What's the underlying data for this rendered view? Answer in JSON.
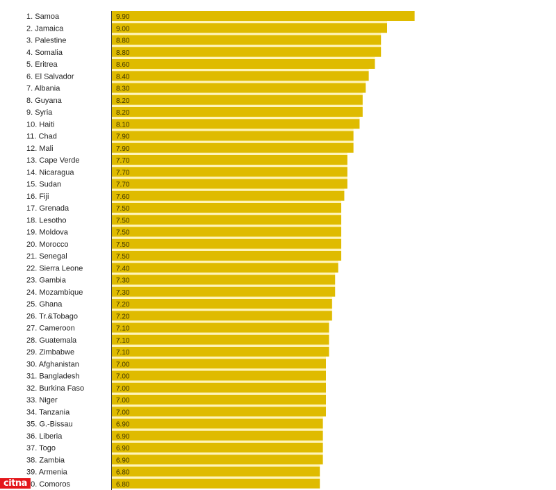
{
  "watermark": {
    "text": "citna",
    "color": "#e4161b"
  },
  "chart_data": {
    "type": "bar",
    "orientation": "horizontal",
    "title": "",
    "xlabel": "",
    "ylabel": "",
    "xlim": [
      0,
      9.9
    ],
    "grid": false,
    "legend": "none",
    "colors": {
      "bar": "#dfbb00",
      "gap": "#fff4b8",
      "axis": "#333333"
    },
    "categories": [
      "1. Samoa",
      "2. Jamaica",
      "3. Palestine",
      "4. Somalia",
      "5. Eritrea",
      "6. El Salvador",
      "7. Albania",
      "8. Guyana",
      "9. Syria",
      "10. Haiti",
      "11. Chad",
      "12. Mali",
      "13. Cape Verde",
      "14. Nicaragua",
      "15. Sudan",
      "16. Fiji",
      "17. Grenada",
      "18. Lesotho",
      "19. Moldova",
      "20. Morocco",
      "21. Senegal",
      "22. Sierra Leone",
      "23. Gambia",
      "24. Mozambique",
      "25. Ghana",
      "26. Tr.&Tobago",
      "27. Cameroon",
      "28. Guatemala",
      "29. Zimbabwe",
      "30. Afghanistan",
      "31. Bangladesh",
      "32. Burkina Faso",
      "33. Niger",
      "34. Tanzania",
      "35. G.-Bissau",
      "36. Liberia",
      "37. Togo",
      "38. Zambia",
      "39. Armenia",
      "40. Comoros"
    ],
    "values": [
      9.9,
      9.0,
      8.8,
      8.8,
      8.6,
      8.4,
      8.3,
      8.2,
      8.2,
      8.1,
      7.9,
      7.9,
      7.7,
      7.7,
      7.7,
      7.6,
      7.5,
      7.5,
      7.5,
      7.5,
      7.5,
      7.4,
      7.3,
      7.3,
      7.2,
      7.2,
      7.1,
      7.1,
      7.1,
      7.0,
      7.0,
      7.0,
      7.0,
      7.0,
      6.9,
      6.9,
      6.9,
      6.9,
      6.8,
      6.8
    ],
    "value_labels": [
      "9.90",
      "9.00",
      "8.80",
      "8.80",
      "8.60",
      "8.40",
      "8.30",
      "8.20",
      "8.20",
      "8.10",
      "7.90",
      "7.90",
      "7.70",
      "7.70",
      "7.70",
      "7.60",
      "7.50",
      "7.50",
      "7.50",
      "7.50",
      "7.50",
      "7.40",
      "7.30",
      "7.30",
      "7.20",
      "7.20",
      "7.10",
      "7.10",
      "7.10",
      "7.00",
      "7.00",
      "7.00",
      "7.00",
      "7.00",
      "6.90",
      "6.90",
      "6.90",
      "6.90",
      "6.80",
      "6.80"
    ]
  }
}
